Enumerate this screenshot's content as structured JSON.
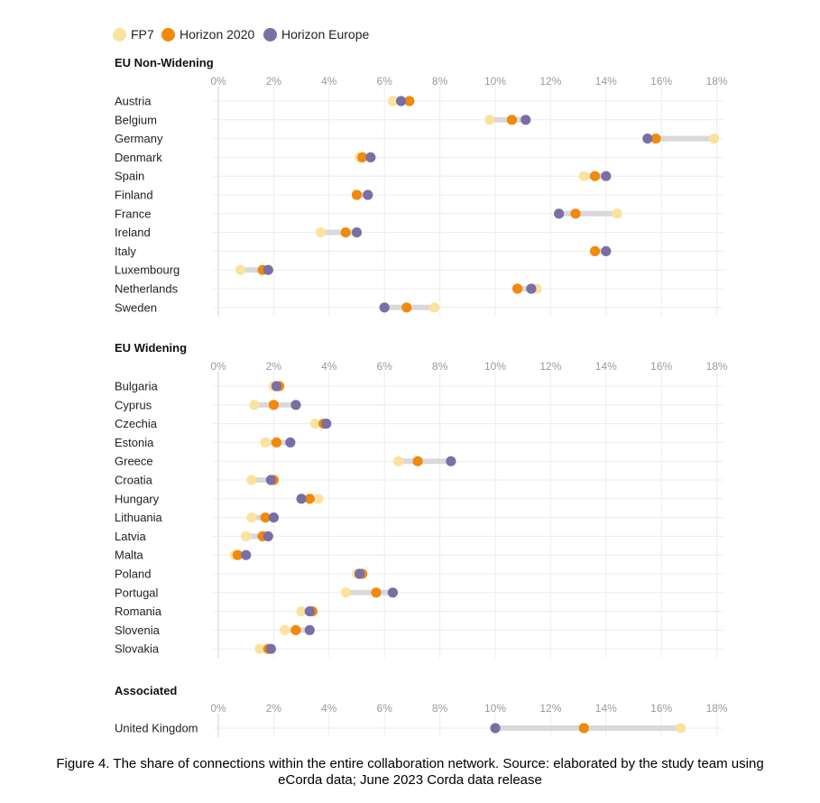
{
  "legend": {
    "items": [
      {
        "name": "FP7",
        "color": "#fbe29d"
      },
      {
        "name": "Horizon 2020",
        "color": "#f18a0a"
      },
      {
        "name": "Horizon Europe",
        "color": "#7b6ea5"
      }
    ]
  },
  "caption": {
    "line1": "Figure 4. The share of connections within the entire collaboration network. Source: elaborated by the study team using",
    "line2": "eCorda data; June 2023 Corda data release"
  },
  "chart_data": {
    "type": "scatter",
    "subtype": "dot-range",
    "x_ticks": [
      "0%",
      "2%",
      "4%",
      "6%",
      "8%",
      "10%",
      "12%",
      "14%",
      "16%",
      "18%"
    ],
    "xlim": [
      0,
      18
    ],
    "grid": true,
    "legend_position": "top-left",
    "series_names": [
      "FP7",
      "Horizon 2020",
      "Horizon Europe"
    ],
    "groups": [
      {
        "title": "EU Non-Widening",
        "countries": [
          {
            "name": "Austria",
            "fp7": 6.3,
            "h2020": 6.9,
            "he": 6.6
          },
          {
            "name": "Belgium",
            "fp7": 9.8,
            "h2020": 10.6,
            "he": 11.1
          },
          {
            "name": "Germany",
            "fp7": 17.9,
            "h2020": 15.8,
            "he": 15.5
          },
          {
            "name": "Denmark",
            "fp7": 5.1,
            "h2020": 5.2,
            "he": 5.5
          },
          {
            "name": "Spain",
            "fp7": 13.2,
            "h2020": 13.6,
            "he": 14.0
          },
          {
            "name": "Finland",
            "fp7": 5.0,
            "h2020": 5.0,
            "he": 5.4
          },
          {
            "name": "France",
            "fp7": 14.4,
            "h2020": 12.9,
            "he": 12.3
          },
          {
            "name": "Ireland",
            "fp7": 3.7,
            "h2020": 4.6,
            "he": 5.0
          },
          {
            "name": "Italy",
            "fp7": 13.6,
            "h2020": 13.6,
            "he": 14.0
          },
          {
            "name": "Luxembourg",
            "fp7": 0.8,
            "h2020": 1.6,
            "he": 1.8
          },
          {
            "name": "Netherlands",
            "fp7": 11.5,
            "h2020": 10.8,
            "he": 11.3
          },
          {
            "name": "Sweden",
            "fp7": 7.8,
            "h2020": 6.8,
            "he": 6.0
          }
        ]
      },
      {
        "title": "EU Widening",
        "countries": [
          {
            "name": "Bulgaria",
            "fp7": 2.0,
            "h2020": 2.2,
            "he": 2.1
          },
          {
            "name": "Cyprus",
            "fp7": 1.3,
            "h2020": 2.0,
            "he": 2.8
          },
          {
            "name": "Czechia",
            "fp7": 3.5,
            "h2020": 3.8,
            "he": 3.9
          },
          {
            "name": "Estonia",
            "fp7": 1.7,
            "h2020": 2.1,
            "he": 2.6
          },
          {
            "name": "Greece",
            "fp7": 6.5,
            "h2020": 7.2,
            "he": 8.4
          },
          {
            "name": "Croatia",
            "fp7": 1.2,
            "h2020": 2.0,
            "he": 1.9
          },
          {
            "name": "Hungary",
            "fp7": 3.6,
            "h2020": 3.3,
            "he": 3.0
          },
          {
            "name": "Lithuania",
            "fp7": 1.2,
            "h2020": 1.7,
            "he": 2.0
          },
          {
            "name": "Latvia",
            "fp7": 1.0,
            "h2020": 1.6,
            "he": 1.8
          },
          {
            "name": "Malta",
            "fp7": 0.6,
            "h2020": 0.7,
            "he": 1.0
          },
          {
            "name": "Poland",
            "fp7": 5.0,
            "h2020": 5.2,
            "he": 5.1
          },
          {
            "name": "Portugal",
            "fp7": 4.6,
            "h2020": 5.7,
            "he": 6.3
          },
          {
            "name": "Romania",
            "fp7": 3.0,
            "h2020": 3.4,
            "he": 3.3
          },
          {
            "name": "Slovenia",
            "fp7": 2.4,
            "h2020": 2.8,
            "he": 3.3
          },
          {
            "name": "Slovakia",
            "fp7": 1.5,
            "h2020": 1.8,
            "he": 1.9
          }
        ]
      },
      {
        "title": "Associated",
        "countries": [
          {
            "name": "United Kingdom",
            "fp7": 16.7,
            "h2020": 13.2,
            "he": 10.0
          }
        ]
      }
    ]
  }
}
